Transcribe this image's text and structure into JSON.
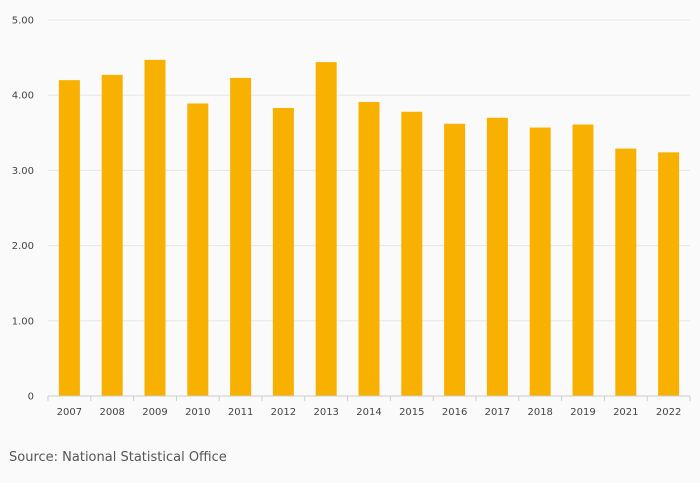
{
  "chart_data": {
    "type": "bar",
    "title": "",
    "xlabel": "",
    "ylabel": "",
    "categories": [
      "2007",
      "2008",
      "2009",
      "2010",
      "2011",
      "2012",
      "2013",
      "2014",
      "2015",
      "2016",
      "2017",
      "2018",
      "2019",
      "2021",
      "2022"
    ],
    "values": [
      4.2,
      4.27,
      4.47,
      3.89,
      4.23,
      3.83,
      4.44,
      3.91,
      3.78,
      3.62,
      3.7,
      3.57,
      3.61,
      3.29,
      3.24
    ],
    "ylim": [
      0,
      5
    ],
    "y_ticks": [
      "0",
      "1.00",
      "2.00",
      "3.00",
      "4.00",
      "5.00"
    ],
    "y_tick_values": [
      0,
      1,
      2,
      3,
      4,
      5
    ],
    "bar_color": "#f8b100",
    "grid": true,
    "legend": "none"
  },
  "footer": {
    "source": "Source: National Statistical Office"
  }
}
